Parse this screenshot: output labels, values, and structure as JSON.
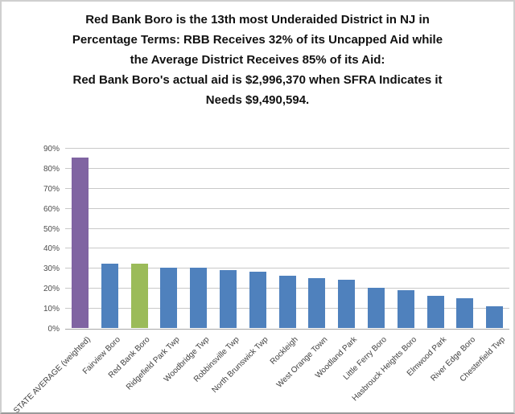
{
  "title": {
    "lines": [
      "Red Bank Boro is the 13th most Underaided District in NJ in",
      "Percentage Terms: RBB Receives 32% of its Uncapped Aid while",
      "the Average District Receives 85% of its Aid:",
      "Red Bank Boro's actual aid is $2,996,370 when SFRA Indicates it",
      "Needs $9,490,594."
    ]
  },
  "chart_data": {
    "type": "bar",
    "title": "Red Bank Boro is the 13th most Underaided District in NJ in Percentage Terms: RBB Receives 32% of its Uncapped Aid while the Average District Receives 85% of its Aid: Red Bank Boro's actual aid is $2,996,370 when SFRA Indicates it Needs $9,490,594.",
    "categories": [
      "STATE AVERAGE (weighted)",
      "Fairview Boro",
      "Red Bank Boro",
      "Ridgefield Park Twp",
      "Woodbridge Twp",
      "Robbinsville Twp",
      "North Brunswick Twp",
      "Rockleigh",
      "West Orange Town",
      "Woodland Park",
      "Little Ferry Boro",
      "Hasbrouck Heights Boro",
      "Elmwood Park",
      "River Edge Boro",
      "Chesterfield Twp"
    ],
    "values": [
      85,
      32,
      32,
      30,
      30,
      29,
      28,
      26,
      25,
      24,
      20,
      19,
      16,
      15,
      11
    ],
    "bar_colors": [
      "#8064A2",
      "#4F81BD",
      "#9BBB59",
      "#4F81BD",
      "#4F81BD",
      "#4F81BD",
      "#4F81BD",
      "#4F81BD",
      "#4F81BD",
      "#4F81BD",
      "#4F81BD",
      "#4F81BD",
      "#4F81BD",
      "#4F81BD",
      "#4F81BD"
    ],
    "color_legend": {
      "state_average": "#8064A2",
      "red_bank_boro_highlight": "#9BBB59",
      "other_districts": "#4F81BD"
    },
    "xlabel": "",
    "ylabel": "",
    "ylim": [
      0,
      90
    ],
    "ytick_values": [
      0,
      10,
      20,
      30,
      40,
      50,
      60,
      70,
      80,
      90
    ],
    "ytick_labels": [
      "0%",
      "10%",
      "20%",
      "30%",
      "40%",
      "50%",
      "60%",
      "70%",
      "80%",
      "90%"
    ],
    "grid": true,
    "legend": "none"
  }
}
